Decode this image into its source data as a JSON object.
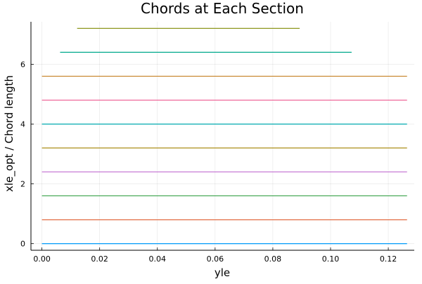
{
  "chart_data": {
    "type": "line",
    "title": "Chords at Each Section",
    "xlabel": "yle",
    "ylabel": "xle_opt / Chord length",
    "xlim": [
      -0.0038,
      0.129
    ],
    "ylim": [
      -0.22,
      7.42
    ],
    "x_ticks": [
      0.0,
      0.02,
      0.04,
      0.06,
      0.08,
      0.1,
      0.12
    ],
    "x_tick_labels": [
      "0.00",
      "0.02",
      "0.04",
      "0.06",
      "0.08",
      "0.10",
      "0.12"
    ],
    "y_ticks": [
      0,
      2,
      4,
      6
    ],
    "y_tick_labels": [
      "0",
      "2",
      "4",
      "6"
    ],
    "grid": true,
    "legend": "none",
    "series": [
      {
        "color": "#009AFA",
        "x": [
          0.0,
          0.1265
        ],
        "y": [
          0.0,
          0.0
        ]
      },
      {
        "color": "#E36F47",
        "x": [
          0.0,
          0.1265
        ],
        "y": [
          0.8,
          0.8
        ]
      },
      {
        "color": "#3EA44E",
        "x": [
          0.0,
          0.1265
        ],
        "y": [
          1.6,
          1.6
        ]
      },
      {
        "color": "#C371D2",
        "x": [
          0.0,
          0.1265
        ],
        "y": [
          2.4,
          2.4
        ]
      },
      {
        "color": "#AC8E18",
        "x": [
          0.0,
          0.1265
        ],
        "y": [
          3.2,
          3.2
        ]
      },
      {
        "color": "#00AAAE",
        "x": [
          0.0,
          0.1265
        ],
        "y": [
          4.0,
          4.0
        ]
      },
      {
        "color": "#ED5D92",
        "x": [
          0.0,
          0.1265
        ],
        "y": [
          4.8,
          4.8
        ]
      },
      {
        "color": "#C68225",
        "x": [
          0.0,
          0.1265
        ],
        "y": [
          5.6,
          5.6
        ]
      },
      {
        "color": "#00A98D",
        "x": [
          0.0063,
          0.1073
        ],
        "y": [
          6.4,
          6.4
        ]
      },
      {
        "color": "#8E971E",
        "x": [
          0.0122,
          0.0893
        ],
        "y": [
          7.2,
          7.2
        ]
      }
    ]
  }
}
